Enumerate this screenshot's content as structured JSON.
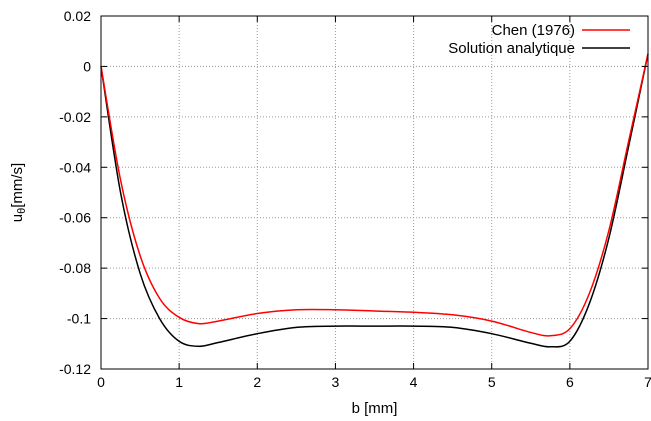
{
  "chart_data": {
    "type": "line",
    "title": "",
    "xlabel": "b [mm]",
    "ylabel": "uθ[mm/s]",
    "ylabel_main": "u",
    "ylabel_sub": "θ",
    "ylabel_unit": "[mm/s]",
    "xlim": [
      0,
      7
    ],
    "ylim": [
      -0.12,
      0.02
    ],
    "x_ticks": [
      "0",
      "1",
      "2",
      "3",
      "4",
      "5",
      "6",
      "7"
    ],
    "y_ticks": [
      "0.02",
      "0",
      "-0.02",
      "-0.04",
      "-0.06",
      "-0.08",
      "-0.1",
      "-0.12"
    ],
    "grid": true,
    "legend_position": "top-right",
    "series": [
      {
        "name": "Chen (1976)",
        "color": "#ff0000",
        "x": [
          0,
          0.25,
          0.5,
          0.75,
          1.0,
          1.25,
          1.5,
          2.0,
          2.5,
          3.0,
          3.5,
          4.0,
          4.5,
          5.0,
          5.5,
          5.75,
          6.0,
          6.25,
          6.5,
          6.75,
          7.0
        ],
        "y": [
          0.0,
          -0.045,
          -0.075,
          -0.092,
          -0.0995,
          -0.102,
          -0.101,
          -0.098,
          -0.0965,
          -0.0965,
          -0.097,
          -0.0975,
          -0.0985,
          -0.101,
          -0.1055,
          -0.1068,
          -0.104,
          -0.09,
          -0.065,
          -0.03,
          0.005
        ]
      },
      {
        "name": "Solution analytique",
        "color": "#000000",
        "x": [
          0,
          0.25,
          0.5,
          0.75,
          1.0,
          1.25,
          1.5,
          2.0,
          2.5,
          3.0,
          3.5,
          4.0,
          4.5,
          5.0,
          5.5,
          5.75,
          6.0,
          6.25,
          6.5,
          6.75,
          7.0
        ],
        "y": [
          0.0,
          -0.05,
          -0.082,
          -0.1,
          -0.109,
          -0.111,
          -0.1095,
          -0.106,
          -0.1035,
          -0.103,
          -0.103,
          -0.103,
          -0.1035,
          -0.106,
          -0.1098,
          -0.1112,
          -0.109,
          -0.094,
          -0.068,
          -0.032,
          0.005
        ]
      }
    ]
  }
}
